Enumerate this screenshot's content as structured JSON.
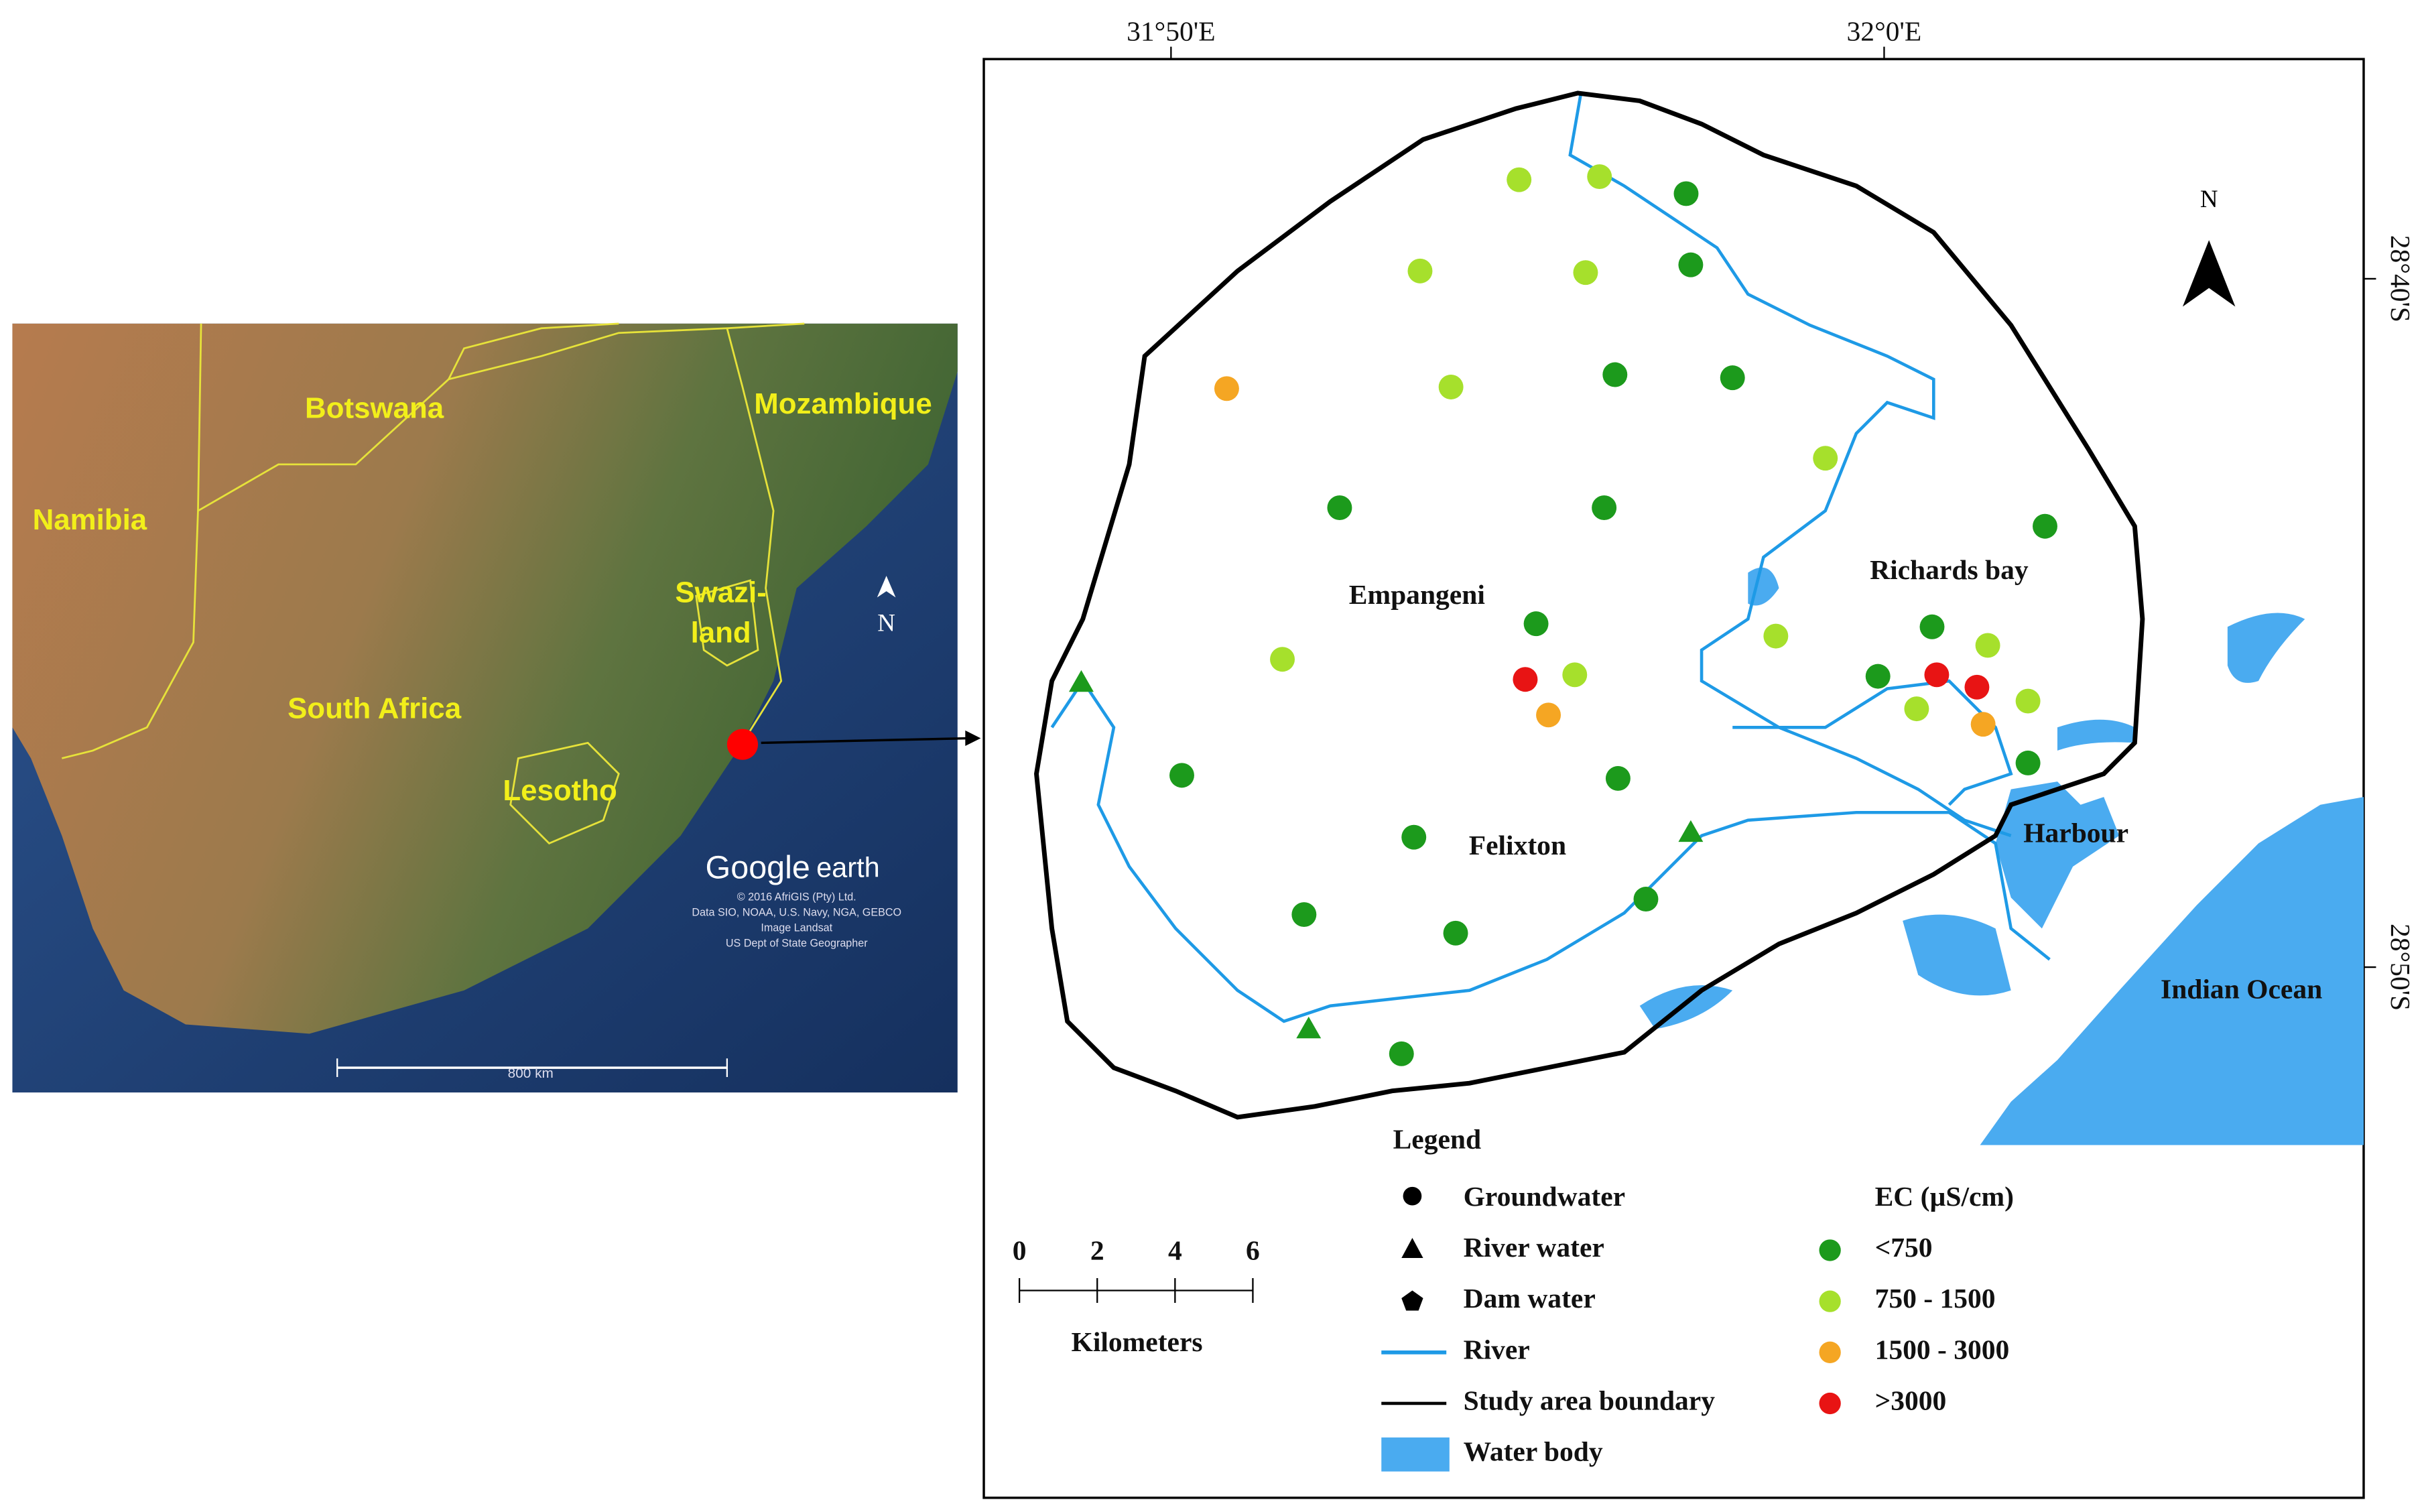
{
  "inset": {
    "labels": [
      "Botswana",
      "Mozambique",
      "Namibia",
      "Swazi-",
      "land",
      "South Africa",
      "Lesotho"
    ],
    "logo": [
      "Google",
      "earth"
    ],
    "credits": [
      "© 2016 AfriGIS (Pty) Ltd.",
      "Data SIO, NOAA, U.S. Navy, NGA, GEBCO",
      "Image Landsat",
      "US Dept of State Geographer"
    ],
    "scale": "800 km",
    "north": "N"
  },
  "map": {
    "longitudes": [
      "31°50'E",
      "32°0'E"
    ],
    "latitudes": [
      "28°40'S",
      "28°50'S"
    ],
    "places": [
      "Empangeni",
      "Richards bay",
      "Felixton",
      "Harbour",
      "Indian Ocean"
    ],
    "north": "N",
    "legend": {
      "title": "Legend",
      "items": [
        "Groundwater",
        "River water",
        "Dam water",
        "River",
        "Study area boundary",
        "Water body"
      ],
      "ec_title": "EC (µS/cm)",
      "ec_classes": [
        "<750",
        "750 - 1500",
        "1500 - 3000",
        ">3000"
      ]
    },
    "scale": {
      "ticks": [
        0,
        2,
        4,
        6
      ],
      "unit": "Kilometers"
    }
  }
}
